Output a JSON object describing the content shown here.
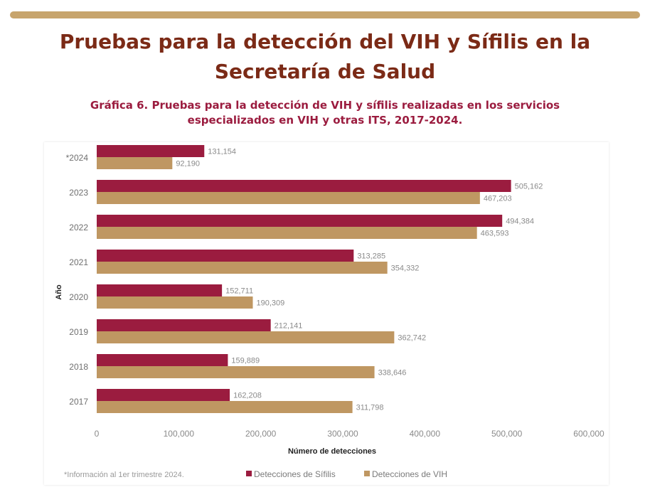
{
  "page": {
    "title_line1": "Pruebas para la detección del VIH y Sífilis en la",
    "title_line2": "Secretaría de Salud"
  },
  "chart_heading": {
    "line1": "Gráfica 6. Pruebas para la detección de VIH y sífilis realizadas en los servicios",
    "line2": "especializados en VIH y otras ITS, 2017-2024."
  },
  "colors": {
    "sifilis": "#9b1c3f",
    "vih": "#bf9762",
    "accent_bar": "#c7a46c"
  },
  "chart_data": {
    "type": "bar",
    "orientation": "horizontal",
    "categories": [
      "*2024",
      "2023",
      "2022",
      "2021",
      "2020",
      "2019",
      "2018",
      "2017"
    ],
    "series": [
      {
        "name": "Detecciones de Sífilis",
        "values": [
          131154,
          505162,
          494384,
          313285,
          152711,
          212141,
          159889,
          162208
        ],
        "labels": [
          "131,154",
          "505,162",
          "494,384",
          "313,285",
          "152,711",
          "212,141",
          "159,889",
          "162,208"
        ]
      },
      {
        "name": "Detecciones de VIH",
        "values": [
          92190,
          467203,
          463593,
          354332,
          190309,
          362742,
          338646,
          311798
        ],
        "labels": [
          "92,190",
          "467,203",
          "463,593",
          "354,332",
          "190,309",
          "362,742",
          "338,646",
          "311,798"
        ]
      }
    ],
    "xlim": [
      0,
      600000
    ],
    "xticks": [
      0,
      100000,
      200000,
      300000,
      400000,
      500000,
      600000
    ],
    "xtick_labels": [
      "0",
      "100,000",
      "200,000",
      "300,000",
      "400,000",
      "500,000",
      "600,000"
    ],
    "xlabel": "Número de detecciones",
    "ylabel": "Año",
    "grid": false,
    "legend_position": "bottom",
    "footnote": "*Información al 1er trimestre 2024."
  }
}
